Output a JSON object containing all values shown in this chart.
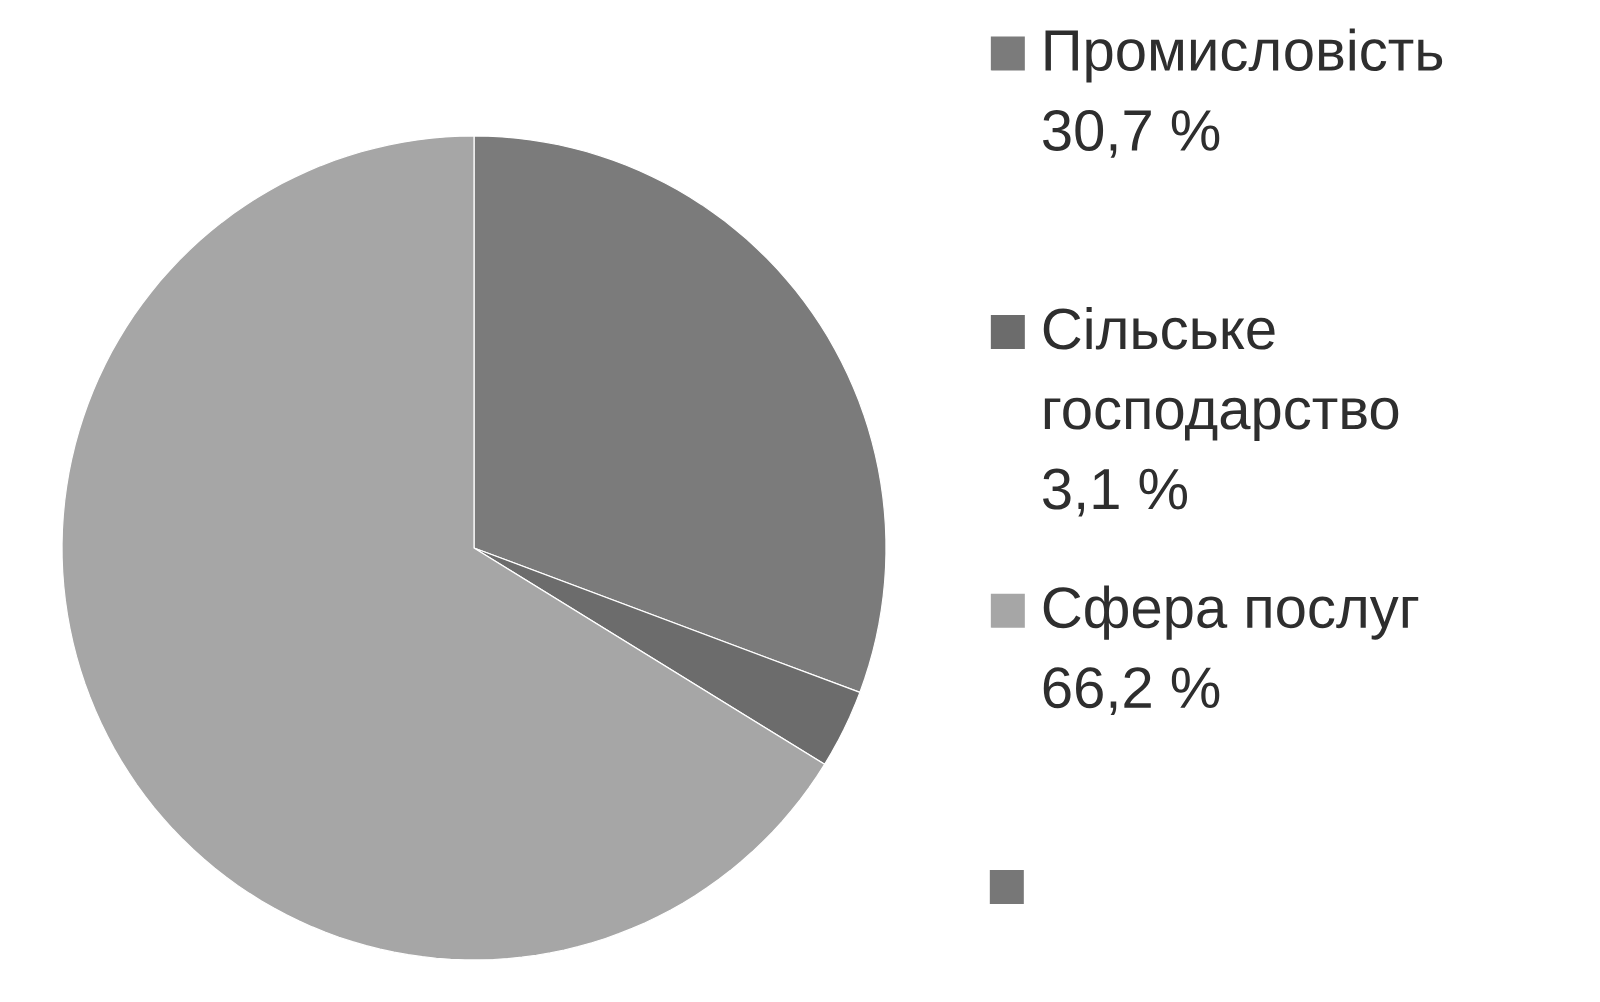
{
  "chart_data": {
    "type": "pie",
    "categories": [
      "Промисловість 30,7 %",
      "Сільське господарство 3,1 %",
      "Сфера послуг 66,2 %"
    ],
    "values": [
      30.7,
      3.1,
      66.2
    ],
    "colors": [
      "#7b7b7b",
      "#6c6c6c",
      "#a6a6a6"
    ],
    "legend": "right"
  }
}
